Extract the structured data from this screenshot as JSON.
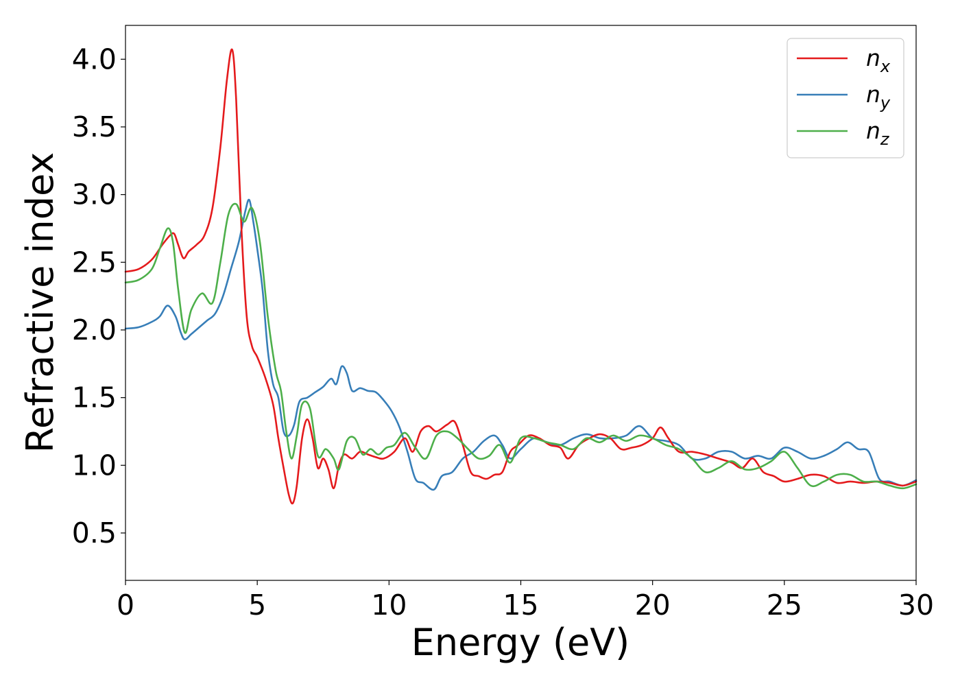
{
  "chart_data": {
    "type": "line",
    "xlabel": "Energy (eV)",
    "ylabel": "Refractive index",
    "xlim": [
      0,
      30
    ],
    "ylim": [
      0.15,
      4.25
    ],
    "xticks": [
      "0",
      "5",
      "10",
      "15",
      "20",
      "25",
      "30"
    ],
    "yticks": [
      "0.5",
      "1.0",
      "1.5",
      "2.0",
      "2.5",
      "3.0",
      "3.5",
      "4.0"
    ],
    "grid": false,
    "legend_position": "top-right",
    "series": [
      {
        "name": "n",
        "subscript": "x",
        "color": "#e41a1c",
        "x": [
          0,
          0.5,
          1.0,
          1.4,
          1.7,
          1.85,
          2.0,
          2.2,
          2.4,
          2.7,
          3.0,
          3.3,
          3.6,
          3.85,
          4.05,
          4.2,
          4.4,
          4.6,
          4.8,
          5.0,
          5.3,
          5.6,
          5.8,
          6.0,
          6.2,
          6.35,
          6.5,
          6.7,
          6.9,
          7.1,
          7.3,
          7.5,
          7.7,
          7.9,
          8.1,
          8.3,
          8.6,
          8.9,
          9.2,
          9.5,
          9.8,
          10.2,
          10.6,
          10.9,
          11.2,
          11.5,
          11.8,
          12.2,
          12.5,
          12.8,
          13.1,
          13.4,
          13.7,
          14.0,
          14.3,
          14.6,
          14.9,
          15.3,
          15.7,
          16.1,
          16.5,
          16.8,
          17.2,
          17.6,
          18.0,
          18.4,
          18.8,
          19.2,
          19.6,
          20.0,
          20.3,
          20.6,
          21.0,
          21.5,
          22.0,
          22.5,
          23.0,
          23.4,
          23.8,
          24.2,
          24.6,
          25.0,
          25.5,
          26.0,
          26.5,
          27.0,
          27.5,
          28.0,
          28.5,
          29.0,
          29.5,
          30.0
        ],
        "y": [
          2.43,
          2.45,
          2.52,
          2.63,
          2.7,
          2.71,
          2.63,
          2.53,
          2.58,
          2.63,
          2.7,
          2.9,
          3.35,
          3.85,
          4.07,
          3.7,
          2.75,
          2.1,
          1.88,
          1.8,
          1.65,
          1.45,
          1.2,
          0.98,
          0.78,
          0.72,
          0.85,
          1.2,
          1.34,
          1.2,
          0.98,
          1.05,
          0.97,
          0.83,
          1.0,
          1.08,
          1.05,
          1.1,
          1.08,
          1.06,
          1.05,
          1.1,
          1.2,
          1.1,
          1.25,
          1.29,
          1.25,
          1.3,
          1.32,
          1.15,
          0.95,
          0.92,
          0.9,
          0.93,
          0.95,
          1.1,
          1.15,
          1.22,
          1.2,
          1.15,
          1.13,
          1.05,
          1.15,
          1.2,
          1.23,
          1.2,
          1.12,
          1.13,
          1.15,
          1.2,
          1.28,
          1.2,
          1.1,
          1.1,
          1.08,
          1.05,
          1.02,
          0.98,
          1.05,
          0.95,
          0.92,
          0.88,
          0.9,
          0.93,
          0.92,
          0.87,
          0.88,
          0.87,
          0.88,
          0.87,
          0.85,
          0.88
        ]
      },
      {
        "name": "n",
        "subscript": "y",
        "color": "#377eb8",
        "x": [
          0,
          0.5,
          1.0,
          1.3,
          1.6,
          1.9,
          2.1,
          2.25,
          2.5,
          2.8,
          3.1,
          3.4,
          3.7,
          4.0,
          4.3,
          4.55,
          4.7,
          4.85,
          5.0,
          5.2,
          5.4,
          5.6,
          5.8,
          6.0,
          6.2,
          6.4,
          6.6,
          6.9,
          7.2,
          7.5,
          7.8,
          8.0,
          8.2,
          8.4,
          8.6,
          8.9,
          9.2,
          9.5,
          9.8,
          10.1,
          10.4,
          10.7,
          11.0,
          11.3,
          11.7,
          12.0,
          12.4,
          12.8,
          13.2,
          13.6,
          14.0,
          14.3,
          14.6,
          15.0,
          15.5,
          16.0,
          16.5,
          17.0,
          17.5,
          18.0,
          18.5,
          19.0,
          19.5,
          20.0,
          20.5,
          21.0,
          21.5,
          22.0,
          22.5,
          23.0,
          23.5,
          24.0,
          24.5,
          25.0,
          25.5,
          26.0,
          26.5,
          27.0,
          27.4,
          27.8,
          28.2,
          28.6,
          29.0,
          29.5,
          30.0
        ],
        "y": [
          2.01,
          2.02,
          2.06,
          2.1,
          2.18,
          2.1,
          1.98,
          1.93,
          1.97,
          2.02,
          2.07,
          2.12,
          2.25,
          2.45,
          2.65,
          2.88,
          2.96,
          2.8,
          2.6,
          2.3,
          1.85,
          1.6,
          1.5,
          1.25,
          1.22,
          1.3,
          1.47,
          1.5,
          1.54,
          1.58,
          1.64,
          1.6,
          1.73,
          1.68,
          1.55,
          1.57,
          1.55,
          1.54,
          1.48,
          1.4,
          1.28,
          1.1,
          0.9,
          0.87,
          0.82,
          0.92,
          0.95,
          1.05,
          1.1,
          1.18,
          1.22,
          1.15,
          1.05,
          1.12,
          1.2,
          1.17,
          1.15,
          1.2,
          1.23,
          1.2,
          1.2,
          1.22,
          1.29,
          1.2,
          1.18,
          1.15,
          1.05,
          1.05,
          1.1,
          1.1,
          1.05,
          1.07,
          1.05,
          1.13,
          1.1,
          1.05,
          1.07,
          1.12,
          1.17,
          1.12,
          1.1,
          0.9,
          0.88,
          0.85,
          0.89
        ]
      },
      {
        "name": "n",
        "subscript": "z",
        "color": "#4daf4a",
        "x": [
          0,
          0.5,
          1.0,
          1.3,
          1.6,
          1.8,
          2.0,
          2.25,
          2.5,
          2.9,
          3.3,
          3.6,
          3.9,
          4.2,
          4.5,
          4.8,
          5.1,
          5.4,
          5.7,
          5.9,
          6.1,
          6.3,
          6.5,
          6.7,
          7.0,
          7.3,
          7.6,
          7.9,
          8.1,
          8.4,
          8.7,
          9.0,
          9.3,
          9.6,
          9.9,
          10.2,
          10.6,
          11.0,
          11.4,
          11.8,
          12.2,
          12.6,
          13.0,
          13.4,
          13.8,
          14.2,
          14.6,
          15.0,
          15.5,
          16.0,
          16.5,
          17.0,
          17.5,
          18.0,
          18.5,
          19.0,
          19.5,
          20.0,
          20.5,
          21.0,
          21.5,
          22.0,
          22.5,
          23.0,
          23.5,
          24.0,
          24.5,
          25.0,
          25.5,
          26.0,
          26.5,
          27.0,
          27.5,
          28.0,
          28.5,
          29.0,
          29.5,
          30.0
        ],
        "y": [
          2.35,
          2.37,
          2.45,
          2.6,
          2.75,
          2.65,
          2.3,
          1.98,
          2.15,
          2.27,
          2.2,
          2.5,
          2.85,
          2.93,
          2.8,
          2.9,
          2.65,
          2.1,
          1.7,
          1.55,
          1.25,
          1.05,
          1.22,
          1.45,
          1.42,
          1.07,
          1.12,
          1.05,
          0.97,
          1.18,
          1.2,
          1.08,
          1.12,
          1.08,
          1.13,
          1.15,
          1.24,
          1.13,
          1.05,
          1.22,
          1.25,
          1.2,
          1.12,
          1.05,
          1.07,
          1.15,
          1.02,
          1.2,
          1.2,
          1.17,
          1.15,
          1.12,
          1.2,
          1.17,
          1.22,
          1.18,
          1.22,
          1.2,
          1.15,
          1.12,
          1.05,
          0.95,
          0.98,
          1.03,
          0.97,
          0.98,
          1.03,
          1.1,
          0.98,
          0.85,
          0.88,
          0.93,
          0.93,
          0.88,
          0.88,
          0.85,
          0.83,
          0.86
        ]
      }
    ]
  }
}
